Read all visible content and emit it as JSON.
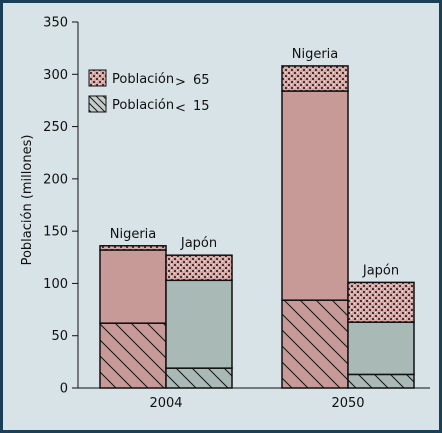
{
  "chart_data": {
    "type": "bar",
    "stacked": true,
    "ylabel": "Población (millones)",
    "ylim": [
      0,
      350
    ],
    "yticks": [
      0,
      50,
      100,
      150,
      200,
      250,
      300,
      350
    ],
    "grid": false,
    "legend_position": "top-left",
    "groups": [
      {
        "label": "2004",
        "bars": [
          {
            "name": "Nigeria",
            "under15": 62,
            "middle": 70,
            "over65": 4,
            "total": 136
          },
          {
            "name": "Japón",
            "under15": 19,
            "middle": 84,
            "over65": 24,
            "total": 127
          }
        ]
      },
      {
        "label": "2050",
        "bars": [
          {
            "name": "Nigeria",
            "under15": 84,
            "middle": 200,
            "over65": 24,
            "total": 308
          },
          {
            "name": "Japón",
            "under15": 13,
            "middle": 50,
            "over65": 38,
            "total": 101
          }
        ]
      }
    ],
    "legend": [
      {
        "key": "over65",
        "label": "Población",
        "symbol": ">",
        "value": "65"
      },
      {
        "key": "under15",
        "label": "Población",
        "symbol": "<",
        "value": "15"
      }
    ],
    "colors": {
      "Nigeria_middle": "#c89a97",
      "Nigeria_under15": "#c89a97",
      "Japón_middle": "#a8b9b6",
      "Japón_under15": "#a8b9b6",
      "over65": "#d5a9a5",
      "frame_border": "#1c3f58",
      "background": "#d7e3e7"
    }
  }
}
